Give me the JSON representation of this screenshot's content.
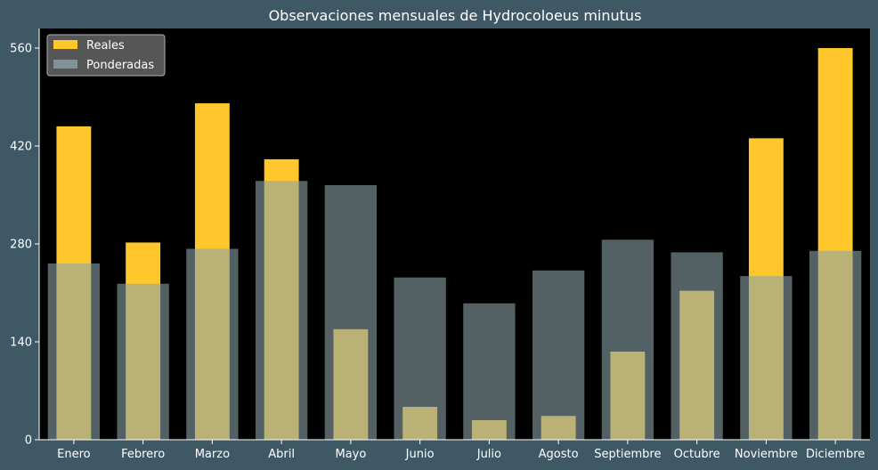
{
  "chart_data": {
    "type": "bar",
    "title": "Observaciones mensuales de Hydrocoloeus minutus",
    "xlabel": "",
    "ylabel": "",
    "categories": [
      "Enero",
      "Febrero",
      "Marzo",
      "Abril",
      "Mayo",
      "Junio",
      "Julio",
      "Agosto",
      "Septiembre",
      "Octubre",
      "Noviembre",
      "Diciembre"
    ],
    "series": [
      {
        "name": "Reales",
        "values": [
          448,
          282,
          481,
          401,
          158,
          47,
          28,
          34,
          126,
          213,
          431,
          560
        ]
      },
      {
        "name": "Ponderadas",
        "values": [
          252,
          223,
          273,
          370,
          364,
          232,
          195,
          242,
          286,
          268,
          234,
          270
        ]
      }
    ],
    "yticks": [
      0,
      140,
      280,
      420,
      560
    ],
    "ylim": [
      0,
      588
    ],
    "legend_position": "top-left",
    "grid": false,
    "colors": {
      "reales": "#ffc72c",
      "ponderadas": "#8ba1a8",
      "ponderadas_opacity": 0.6,
      "plot_background": "#000000",
      "figure_background": "#3f5866",
      "text": "#ffffff"
    }
  }
}
